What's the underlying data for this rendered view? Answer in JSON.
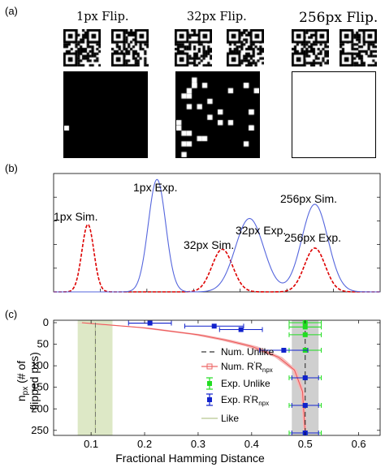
{
  "panel_a": {
    "label": "(a)",
    "groups": [
      {
        "size": "1px",
        "suffix": " Flip.",
        "fill_pct": 0.4
      },
      {
        "size": "32px",
        "suffix": " Flip.",
        "fill_pct": 3.1
      },
      {
        "size": "256px",
        "suffix": " Flip.",
        "fill_pct": 100
      }
    ]
  },
  "panel_b": {
    "label": "(b)",
    "annotations": {
      "exp1": "1px Exp.",
      "sim1": "1px Sim.",
      "exp32": "32px Exp.",
      "sim32": "32px Sim.",
      "sim256": "256px Sim.",
      "exp256": "256px Exp."
    }
  },
  "panel_c": {
    "label": "(c)",
    "ylabel_line1": "n",
    "ylabel_sub": "px",
    "ylabel_rest": " (# of",
    "ylabel_line2": "flipped pxs)",
    "xlabel": "Fractional Hamming Distance",
    "xticks": [
      "0.1",
      "0.2",
      "0.3",
      "0.4",
      "0.5",
      "0.6"
    ],
    "yticks": [
      "0",
      "50",
      "100",
      "150",
      "200",
      "250"
    ],
    "legend": {
      "num_unlike": "Num. Unlike",
      "num_rr_prefix": "Num. R",
      "num_rr_mid": "R",
      "num_rr_sub": "npx",
      "exp_unlike": "Exp. Unlike",
      "exp_rr_prefix": "Exp. R",
      "exp_rr_mid": "R",
      "exp_rr_sub": "npx",
      "like": "Like"
    }
  },
  "chart_data": [
    {
      "type": "line",
      "panel": "b",
      "x_range": [
        0.02,
        0.62
      ],
      "series": [
        {
          "curve": "Sim",
          "color": "#dd0000",
          "style": "dashed",
          "peaks": [
            {
              "n": 1,
              "x": 0.083,
              "height": 0.57,
              "sd": 0.011
            },
            {
              "n": 32,
              "x": 0.33,
              "height": 0.36,
              "sd": 0.019
            },
            {
              "n": 256,
              "x": 0.5,
              "height": 0.37,
              "sd": 0.019
            }
          ]
        },
        {
          "curve": "Exp",
          "color": "#5566dd",
          "style": "solid",
          "peaks": [
            {
              "n": 1,
              "x": 0.21,
              "height": 0.95,
              "sd": 0.016
            },
            {
              "n": 32,
              "x": 0.38,
              "height": 0.62,
              "sd": 0.026
            },
            {
              "n": 256,
              "x": 0.5,
              "height": 0.74,
              "sd": 0.024
            }
          ]
        }
      ]
    },
    {
      "type": "scatter",
      "panel": "c",
      "xlim": [
        0.03,
        0.64
      ],
      "ylim": [
        0,
        256
      ],
      "shaded_ranges": [
        {
          "x": [
            0.075,
            0.14
          ],
          "color": "#dde8c6"
        },
        {
          "x": [
            0.475,
            0.525
          ],
          "color": "#cfcfcf"
        }
      ],
      "num_unlike": {
        "x": 0.5,
        "color": "#333333"
      },
      "like": {
        "x": 0.108,
        "color": "#b8c890"
      },
      "num_rr_curve": [
        [
          0.083,
          0
        ],
        [
          0.13,
          5
        ],
        [
          0.2,
          12
        ],
        [
          0.3,
          28
        ],
        [
          0.35,
          40
        ],
        [
          0.4,
          55
        ],
        [
          0.45,
          80
        ],
        [
          0.48,
          110
        ],
        [
          0.495,
          160
        ],
        [
          0.5,
          256
        ]
      ],
      "exp_rr_points": [
        {
          "x": 0.21,
          "y": 1,
          "xerr": 0.04
        },
        {
          "x": 0.33,
          "y": 8,
          "xerr": 0.055
        },
        {
          "x": 0.38,
          "y": 16,
          "xerr": 0.04
        },
        {
          "x": 0.46,
          "y": 64,
          "xerr": 0.045
        },
        {
          "x": 0.5,
          "y": 128,
          "xerr": 0.025
        },
        {
          "x": 0.5,
          "y": 192,
          "xerr": 0.025
        },
        {
          "x": 0.5,
          "y": 256,
          "xerr": 0.025
        }
      ],
      "exp_unlike_points": [
        {
          "x": 0.5,
          "y": 0,
          "xerr": 0.03
        },
        {
          "x": 0.5,
          "y": 10,
          "xerr": 0.03
        },
        {
          "x": 0.5,
          "y": 28,
          "xerr": 0.03
        },
        {
          "x": 0.5,
          "y": 64,
          "xerr": 0.03
        },
        {
          "x": 0.5,
          "y": 128,
          "xerr": 0.03
        },
        {
          "x": 0.5,
          "y": 192,
          "xerr": 0.03
        },
        {
          "x": 0.5,
          "y": 256,
          "xerr": 0.03
        }
      ]
    }
  ]
}
